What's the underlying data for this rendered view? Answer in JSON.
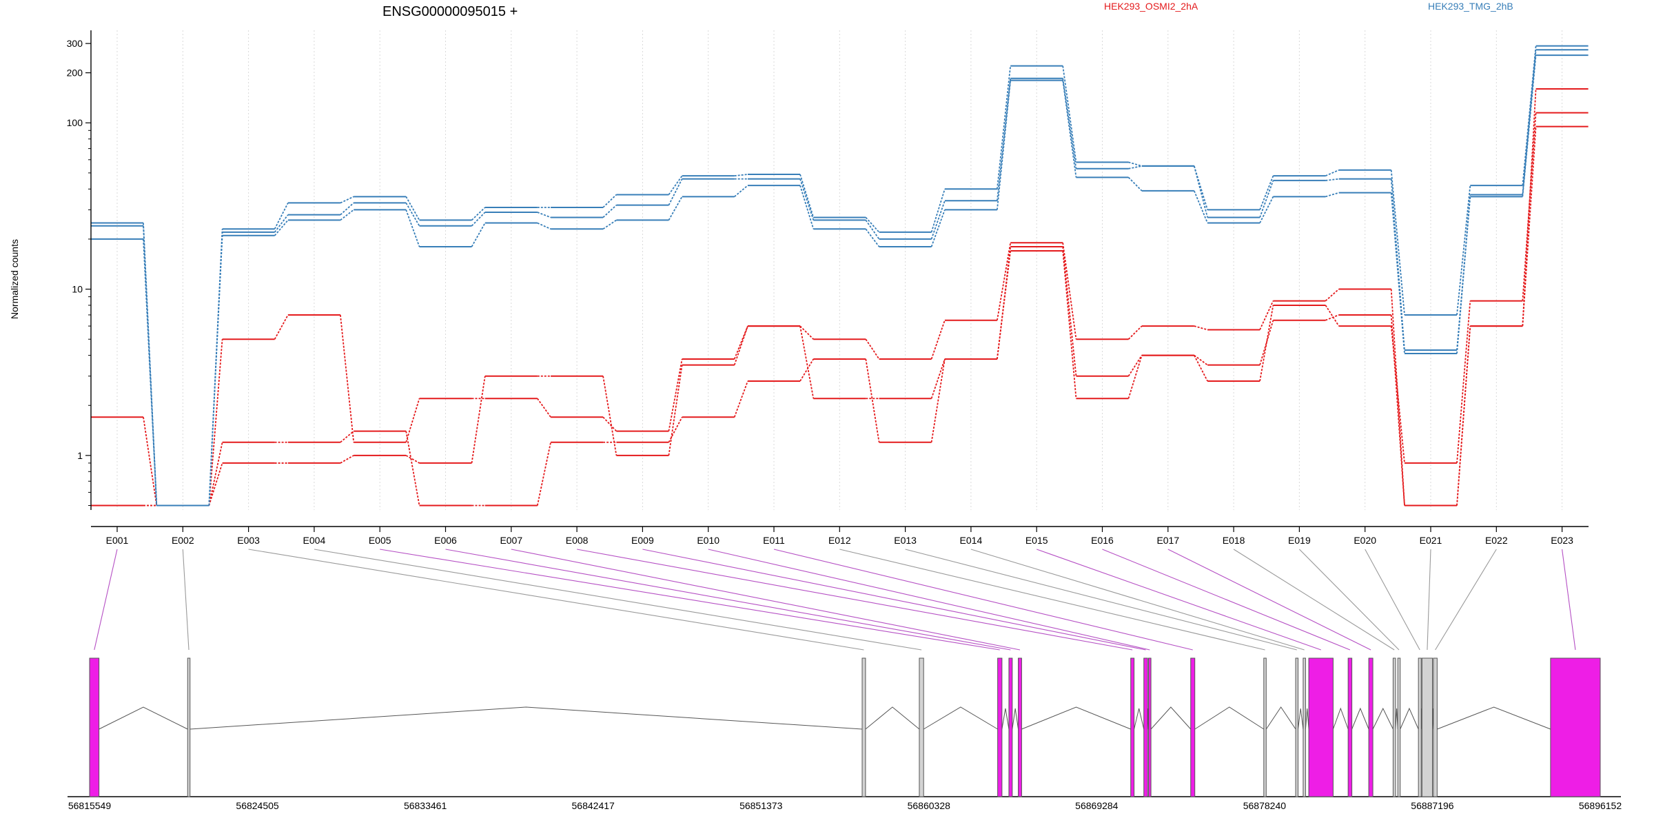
{
  "chart_data": {
    "type": "line",
    "title": "ENSG00000095015 +",
    "ylabel": "Normalized counts",
    "y_scale": "log",
    "y_ticks": [
      1,
      10,
      100,
      200,
      300
    ],
    "ylim": [
      0.47,
      360
    ],
    "categories": [
      "E001",
      "E002",
      "E003",
      "E004",
      "E005",
      "E006",
      "E007",
      "E008",
      "E009",
      "E010",
      "E011",
      "E012",
      "E013",
      "E014",
      "E015",
      "E016",
      "E017",
      "E018",
      "E019",
      "E020",
      "E021",
      "E022",
      "E023"
    ],
    "groups": [
      {
        "name": "HEK293_OSMI2_2hA",
        "color": "#e41a1c"
      },
      {
        "name": "HEK293_TMG_2hB",
        "color": "#377eb8"
      }
    ],
    "series": [
      {
        "group": 0,
        "values": [
          1.7,
          0.5,
          5.0,
          7.0,
          1.2,
          2.2,
          2.2,
          1.7,
          1.4,
          3.8,
          6.0,
          5.0,
          3.8,
          6.5,
          19.0,
          5.0,
          6.0,
          5.7,
          8.5,
          10.0,
          0.5,
          6.0,
          160
        ]
      },
      {
        "group": 0,
        "values": [
          0.5,
          0.5,
          1.2,
          1.2,
          1.4,
          0.5,
          0.5,
          1.2,
          1.2,
          1.7,
          2.8,
          3.8,
          1.2,
          3.8,
          18.0,
          3.0,
          4.0,
          3.5,
          6.5,
          7.0,
          0.5,
          6.0,
          95
        ]
      },
      {
        "group": 0,
        "values": [
          0.5,
          0.5,
          0.9,
          0.9,
          1.0,
          0.9,
          3.0,
          3.0,
          1.0,
          3.5,
          6.0,
          2.2,
          2.2,
          3.8,
          17.0,
          2.2,
          4.0,
          2.8,
          8.0,
          6.0,
          0.9,
          8.5,
          115
        ]
      },
      {
        "group": 1,
        "values": [
          25,
          0.5,
          23,
          33,
          36,
          26,
          31,
          31,
          37,
          48,
          49,
          27,
          22,
          40,
          220,
          58,
          55,
          30,
          48,
          52,
          7.0,
          42,
          290
        ]
      },
      {
        "group": 1,
        "values": [
          24,
          0.5,
          22,
          28,
          33,
          24,
          29,
          27,
          32,
          46,
          46,
          26,
          20,
          34,
          185,
          53,
          55,
          27,
          45,
          46,
          4.3,
          37,
          275
        ]
      },
      {
        "group": 1,
        "values": [
          20,
          0.5,
          21,
          26,
          30,
          18,
          25,
          23,
          26,
          36,
          42,
          23,
          18,
          30,
          180,
          47,
          39,
          25,
          36,
          38,
          4.1,
          36,
          255
        ]
      }
    ],
    "gene_model": {
      "start": 56815549,
      "end": 56896152,
      "coordinate_ticks": [
        56815549,
        56824505,
        56833461,
        56842417,
        56851373,
        56860328,
        56869284,
        56878240,
        56887196,
        56896152
      ],
      "highlight_color": "#ee1ee6",
      "exons": [
        {
          "id": "E001",
          "start": 56815549,
          "end": 56816050,
          "highlight": true
        },
        {
          "id": "E002",
          "start": 56820780,
          "end": 56820830,
          "highlight": false
        },
        {
          "id": "E003",
          "start": 56856770,
          "end": 56856950,
          "highlight": false
        },
        {
          "id": "E004",
          "start": 56859820,
          "end": 56860050,
          "highlight": false
        },
        {
          "id": "E005",
          "start": 56864000,
          "end": 56864230,
          "highlight": true
        },
        {
          "id": "E006",
          "start": 56864600,
          "end": 56864780,
          "highlight": true
        },
        {
          "id": "E007",
          "start": 56865100,
          "end": 56865280,
          "highlight": true
        },
        {
          "id": "E008",
          "start": 56871100,
          "end": 56871280,
          "highlight": true
        },
        {
          "id": "E009",
          "start": 56871800,
          "end": 56872000,
          "highlight": true
        },
        {
          "id": "E010",
          "start": 56872050,
          "end": 56872180,
          "highlight": true
        },
        {
          "id": "E011",
          "start": 56874300,
          "end": 56874520,
          "highlight": true
        },
        {
          "id": "E012",
          "start": 56878200,
          "end": 56878300,
          "highlight": false
        },
        {
          "id": "E013",
          "start": 56879900,
          "end": 56879990,
          "highlight": false
        },
        {
          "id": "E014",
          "start": 56880300,
          "end": 56880420,
          "highlight": false
        },
        {
          "id": "E015",
          "start": 56880600,
          "end": 56881900,
          "highlight": true
        },
        {
          "id": "E016",
          "start": 56882700,
          "end": 56882900,
          "highlight": true
        },
        {
          "id": "E017",
          "start": 56883800,
          "end": 56884020,
          "highlight": true
        },
        {
          "id": "E018",
          "start": 56885100,
          "end": 56885220,
          "highlight": false
        },
        {
          "id": "E019",
          "start": 56885350,
          "end": 56885420,
          "highlight": false
        },
        {
          "id": "E020",
          "start": 56886450,
          "end": 56886600,
          "highlight": false
        },
        {
          "id": "E021",
          "start": 56886640,
          "end": 56887200,
          "highlight": false
        },
        {
          "id": "E022",
          "start": 56887250,
          "end": 56887450,
          "highlight": false
        },
        {
          "id": "E023",
          "start": 56893500,
          "end": 56896152,
          "highlight": true
        }
      ]
    }
  }
}
